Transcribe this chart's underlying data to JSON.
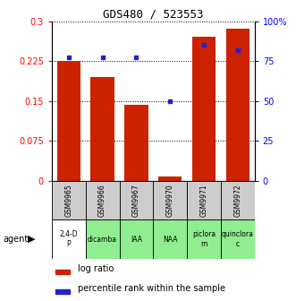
{
  "title": "GDS480 / 523553",
  "samples": [
    "GSM9965",
    "GSM9966",
    "GSM9967",
    "GSM9970",
    "GSM9971",
    "GSM9972"
  ],
  "agents": [
    "2,4-D\nP",
    "dicamba",
    "IAA",
    "NAA",
    "piclora\nm",
    "quinclora\nc"
  ],
  "agent_colors": [
    "#ffffff",
    "#90ee90",
    "#90ee90",
    "#90ee90",
    "#90ee90",
    "#90ee90"
  ],
  "log_ratios": [
    0.225,
    0.195,
    0.143,
    0.007,
    0.27,
    0.285
  ],
  "percentile_ranks": [
    77,
    77,
    77,
    50,
    85,
    82
  ],
  "ylim_left": [
    0,
    0.3
  ],
  "ylim_right": [
    0,
    100
  ],
  "yticks_left": [
    0,
    0.075,
    0.15,
    0.225,
    0.3
  ],
  "yticks_right": [
    0,
    25,
    50,
    75,
    100
  ],
  "ytick_labels_left": [
    "0",
    "0.075",
    "0.15",
    "0.225",
    "0.3"
  ],
  "ytick_labels_right": [
    "0",
    "25",
    "50",
    "75",
    "100%"
  ],
  "bar_color": "#cc2200",
  "dot_color": "#2222cc",
  "bg_color": "#ffffff",
  "sample_row_color": "#cccccc",
  "bar_width": 0.7,
  "legend_bar_label": "log ratio",
  "legend_dot_label": "percentile rank within the sample"
}
